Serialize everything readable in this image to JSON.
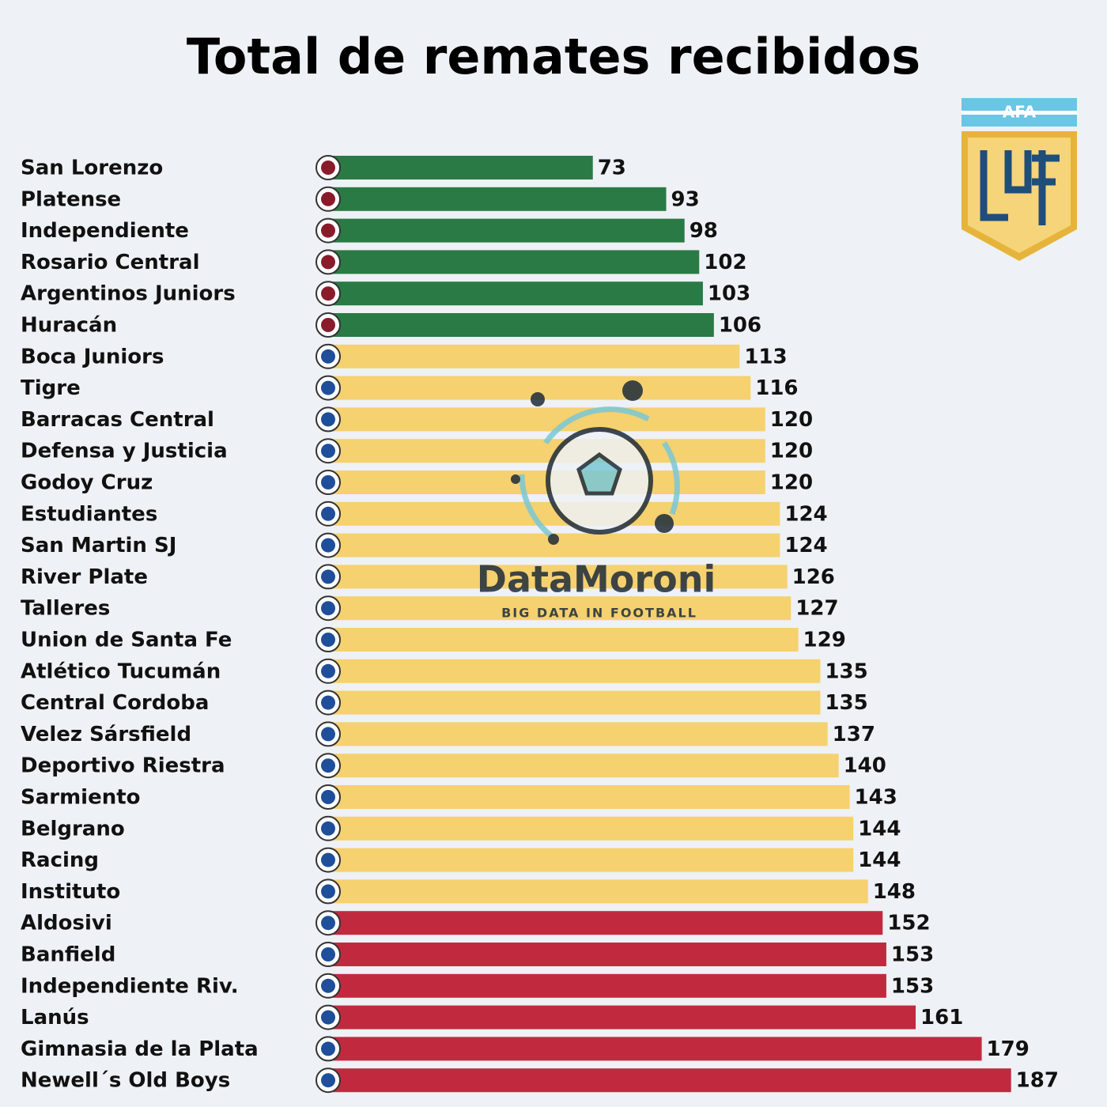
{
  "chart_data": {
    "type": "bar",
    "orientation": "horizontal",
    "title": "Total de remates recibidos",
    "categories": [
      "San Lorenzo",
      "Platense",
      "Independiente",
      "Rosario Central",
      "Argentinos Juniors",
      "Huracán",
      "Boca Juniors",
      "Tigre",
      "Barracas Central",
      "Defensa y Justicia",
      "Godoy Cruz",
      "Estudiantes",
      "San Martin SJ",
      "River Plate",
      "Talleres",
      "Union de Santa Fe",
      "Atlético Tucumán",
      "Central Cordoba",
      "Velez Sársfield",
      "Deportivo Riestra",
      "Sarmiento",
      "Belgrano",
      "Racing",
      "Instituto",
      "Aldosivi",
      "Banfield",
      "Independiente Riv.",
      "Lanús",
      "Gimnasia de la Plata",
      "Newell´s Old Boys"
    ],
    "values": [
      73,
      93,
      98,
      102,
      103,
      106,
      113,
      116,
      120,
      120,
      120,
      124,
      124,
      126,
      127,
      129,
      135,
      135,
      137,
      140,
      143,
      144,
      144,
      148,
      152,
      153,
      153,
      161,
      179,
      187
    ],
    "colors": [
      "#2a7a45",
      "#2a7a45",
      "#2a7a45",
      "#2a7a45",
      "#2a7a45",
      "#2a7a45",
      "#f5d16f",
      "#f5d16f",
      "#f5d16f",
      "#f5d16f",
      "#f5d16f",
      "#f5d16f",
      "#f5d16f",
      "#f5d16f",
      "#f5d16f",
      "#f5d16f",
      "#f5d16f",
      "#f5d16f",
      "#f5d16f",
      "#f5d16f",
      "#f5d16f",
      "#f5d16f",
      "#f5d16f",
      "#f5d16f",
      "#c12a3e",
      "#c12a3e",
      "#c12a3e",
      "#c12a3e",
      "#c12a3e",
      "#c12a3e"
    ]
  },
  "watermark": {
    "name": "DataMoroni",
    "tagline": "BIG DATA IN FOOTBALL"
  },
  "badge": {
    "label": "AFA"
  }
}
